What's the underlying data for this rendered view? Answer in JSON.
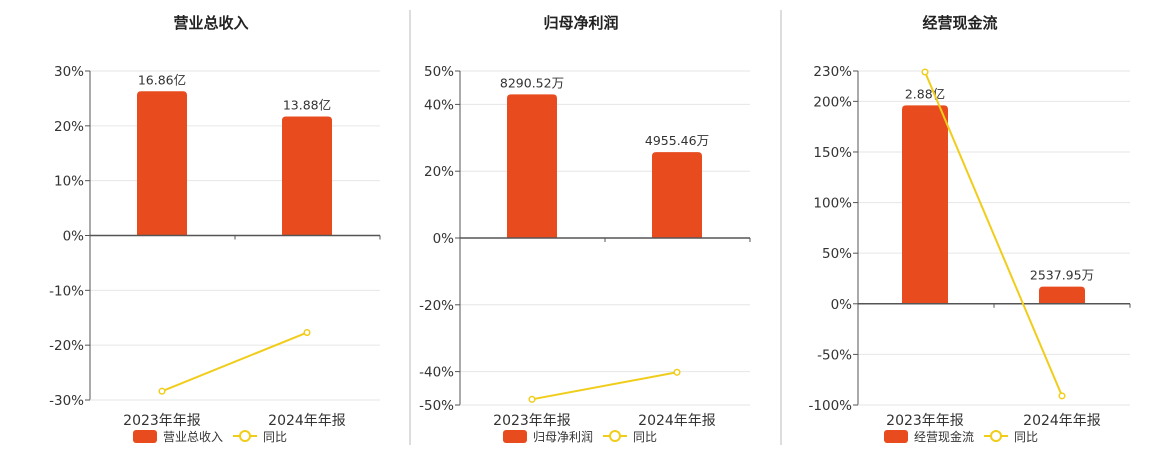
{
  "chart_data": [
    {
      "type": "bar",
      "title": "营业总收入",
      "categories": [
        "2023年年报",
        "2024年年报"
      ],
      "bar_series": {
        "name": "营业总收入",
        "data_labels": [
          "16.86亿",
          "13.88亿"
        ],
        "bar_heights_on_pct_axis": [
          26.3,
          21.7
        ]
      },
      "line_series": {
        "name": "同比",
        "values": [
          -28.4,
          -17.7
        ]
      },
      "y_ticks": [
        "30%",
        "20%",
        "10%",
        "0%",
        "-10%",
        "-20%",
        "-30%"
      ],
      "ylim": [
        -30,
        30
      ]
    },
    {
      "type": "bar",
      "title": "归母净利润",
      "categories": [
        "2023年年报",
        "2024年年报"
      ],
      "bar_series": {
        "name": "归母净利润",
        "data_labels": [
          "8290.52万",
          "4955.46万"
        ],
        "bar_heights_on_pct_axis": [
          43,
          25.7
        ]
      },
      "line_series": {
        "name": "同比",
        "values": [
          -48.3,
          -40.2
        ]
      },
      "y_ticks": [
        "50%",
        "40%",
        "20%",
        "0%",
        "-20%",
        "-40%",
        "-50%"
      ],
      "ylim": [
        -50,
        50
      ]
    },
    {
      "type": "bar",
      "title": "经营现金流",
      "categories": [
        "2023年年报",
        "2024年年报"
      ],
      "bar_series": {
        "name": "经营现金流",
        "data_labels": [
          "2.88亿",
          "2537.95万"
        ],
        "bar_heights_on_pct_axis": [
          196,
          17
        ]
      },
      "line_series": {
        "name": "同比",
        "values": [
          229,
          -91
        ]
      },
      "y_ticks": [
        "230%",
        "200%",
        "150%",
        "100%",
        "50%",
        "0%",
        "-50%",
        "-100%"
      ],
      "ylim": [
        -100,
        230
      ]
    }
  ],
  "colors": {
    "bar": "#e84c1e",
    "line": "#f1cd1b",
    "axis": "#555555",
    "grid": "#e6e6e6",
    "divider": "#bbbbbb",
    "text": "#333333"
  }
}
